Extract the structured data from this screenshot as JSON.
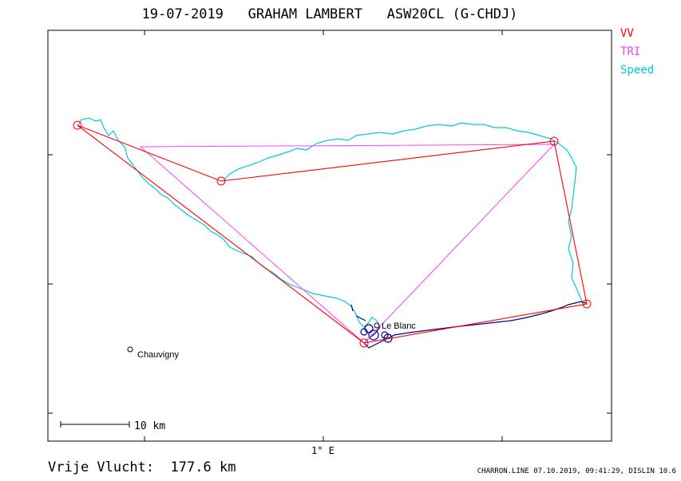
{
  "header": {
    "date": "19-07-2019",
    "pilot": "GRAHAM LAMBERT",
    "glider": "ASW20CL (G-CHDJ)"
  },
  "legend": [
    {
      "label": "VV",
      "color": "#ff0000"
    },
    {
      "label": "TRI",
      "color": "#ff40ff"
    },
    {
      "label": "Speed",
      "color": "#00c8e0"
    }
  ],
  "footer": {
    "distance_label": "Vrije Vlucht:",
    "distance_value": "177.6 km",
    "software": "CHARRON.LINE 07.10.2019, 09:41:29, DISLIN 10.6"
  },
  "map": {
    "longitude_label": "1° E",
    "scale_label": "10 km",
    "places": [
      {
        "name": "Chauvigny"
      },
      {
        "name": "Le Blanc"
      }
    ]
  },
  "colors": {
    "vv": "#ff0000",
    "tri": "#ff40ff",
    "speed": "#00c8e0",
    "track_low": "#00008b"
  }
}
